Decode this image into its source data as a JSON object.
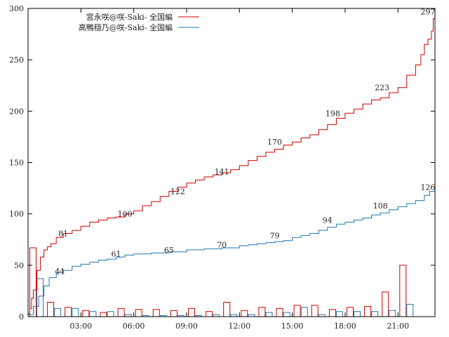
{
  "chart_data": {
    "type": "line",
    "title": "",
    "xlabel": "",
    "ylabel": "",
    "xlim": [
      0.0,
      23.1
    ],
    "ylim": [
      0,
      300
    ],
    "grid": false,
    "legend_position": "top-left",
    "x_ticks": [
      {
        "value": 3,
        "label": "03:00"
      },
      {
        "value": 6,
        "label": "06:00"
      },
      {
        "value": 9,
        "label": "09:00"
      },
      {
        "value": 12,
        "label": "12:00"
      },
      {
        "value": 15,
        "label": "15:00"
      },
      {
        "value": 18,
        "label": "18:00"
      },
      {
        "value": 21,
        "label": "21:00"
      }
    ],
    "y_ticks": [
      {
        "value": 0,
        "label": "0"
      },
      {
        "value": 50,
        "label": "50"
      },
      {
        "value": 100,
        "label": "100"
      },
      {
        "value": 150,
        "label": "150"
      },
      {
        "value": 200,
        "label": "200"
      },
      {
        "value": 250,
        "label": "250"
      },
      {
        "value": 300,
        "label": "300"
      }
    ],
    "series": [
      {
        "name": "宮永咲@咲-Saki- 全国編",
        "color": "#cc0000",
        "cumulative": {
          "x": [
            0.0,
            0.1,
            0.2,
            0.3,
            0.5,
            0.7,
            0.9,
            1.1,
            1.3,
            1.6,
            2.0,
            2.5,
            3.0,
            3.5,
            4.0,
            4.5,
            5.0,
            5.5,
            6.0,
            6.5,
            7.0,
            7.5,
            8.0,
            8.5,
            9.0,
            9.5,
            10.0,
            10.5,
            11.0,
            11.5,
            12.0,
            12.5,
            13.0,
            13.5,
            14.0,
            14.5,
            15.0,
            15.5,
            16.0,
            16.5,
            17.0,
            17.5,
            18.0,
            18.5,
            19.0,
            19.5,
            20.0,
            20.5,
            21.0,
            21.5,
            22.0,
            22.3,
            22.5,
            22.7,
            22.9,
            23.0,
            23.1
          ],
          "y": [
            3,
            8,
            18,
            26,
            45,
            58,
            65,
            68,
            71,
            77,
            81,
            84,
            88,
            92,
            94,
            96,
            97,
            100,
            103,
            108,
            112,
            117,
            122,
            126,
            130,
            133,
            136,
            138,
            140,
            143,
            147,
            152,
            156,
            160,
            163,
            167,
            170,
            174,
            177,
            182,
            187,
            193,
            198,
            202,
            207,
            211,
            213,
            218,
            223,
            235,
            245,
            255,
            265,
            270,
            278,
            290,
            297
          ]
        },
        "labels": [
          {
            "x": 2.0,
            "y": 81,
            "text": "81"
          },
          {
            "x": 5.5,
            "y": 100,
            "text": "100"
          },
          {
            "x": 8.5,
            "y": 122,
            "text": "122"
          },
          {
            "x": 11.0,
            "y": 141,
            "text": "141"
          },
          {
            "x": 14.0,
            "y": 170,
            "text": "170"
          },
          {
            "x": 17.3,
            "y": 198,
            "text": "198"
          },
          {
            "x": 20.1,
            "y": 223,
            "text": "223"
          },
          {
            "x": 22.7,
            "y": 297,
            "text": "297"
          }
        ],
        "hourly_counts": [
          {
            "x": 0.1,
            "value": 67
          },
          {
            "x": 1.1,
            "value": 14
          },
          {
            "x": 2.1,
            "value": 9
          },
          {
            "x": 3.1,
            "value": 6
          },
          {
            "x": 4.1,
            "value": 4
          },
          {
            "x": 5.1,
            "value": 8
          },
          {
            "x": 6.1,
            "value": 7
          },
          {
            "x": 7.1,
            "value": 7
          },
          {
            "x": 8.1,
            "value": 6
          },
          {
            "x": 9.1,
            "value": 8
          },
          {
            "x": 10.1,
            "value": 5
          },
          {
            "x": 11.1,
            "value": 14
          },
          {
            "x": 12.1,
            "value": 6
          },
          {
            "x": 13.1,
            "value": 9
          },
          {
            "x": 14.1,
            "value": 8
          },
          {
            "x": 15.1,
            "value": 11
          },
          {
            "x": 16.1,
            "value": 11
          },
          {
            "x": 17.1,
            "value": 7
          },
          {
            "x": 18.1,
            "value": 9
          },
          {
            "x": 19.1,
            "value": 10
          },
          {
            "x": 20.1,
            "value": 24
          },
          {
            "x": 21.1,
            "value": 50
          }
        ]
      },
      {
        "name": "高鴨穏乃@咲-Saki- 全国編",
        "color": "#1f77b4",
        "cumulative": {
          "x": [
            0.0,
            0.3,
            0.6,
            0.9,
            1.2,
            1.6,
            2.0,
            2.5,
            3.0,
            3.5,
            4.0,
            4.5,
            5.0,
            5.5,
            6.0,
            7.0,
            8.0,
            9.0,
            10.0,
            11.0,
            12.0,
            12.5,
            13.0,
            13.5,
            14.0,
            14.5,
            15.0,
            15.5,
            16.0,
            16.5,
            17.0,
            17.5,
            18.0,
            18.5,
            19.0,
            19.5,
            20.0,
            20.5,
            21.0,
            21.5,
            22.0,
            22.5,
            22.8,
            23.1
          ],
          "y": [
            2,
            10,
            20,
            30,
            38,
            43,
            45,
            49,
            51,
            53,
            55,
            56,
            58,
            60,
            61,
            62,
            63,
            65,
            66,
            67,
            69,
            70,
            71,
            72,
            73,
            74,
            77,
            79,
            81,
            84,
            87,
            90,
            92,
            94,
            96,
            99,
            101,
            104,
            107,
            110,
            113,
            118,
            122,
            126
          ]
        },
        "labels": [
          {
            "x": 1.8,
            "y": 44,
            "text": "44"
          },
          {
            "x": 5.0,
            "y": 61,
            "text": "61"
          },
          {
            "x": 8.0,
            "y": 65,
            "text": "65"
          },
          {
            "x": 11.0,
            "y": 70,
            "text": "70"
          },
          {
            "x": 14.0,
            "y": 79,
            "text": "79"
          },
          {
            "x": 17.0,
            "y": 94,
            "text": "94"
          },
          {
            "x": 20.0,
            "y": 108,
            "text": "108"
          },
          {
            "x": 22.7,
            "y": 126,
            "text": "126"
          }
        ],
        "hourly_counts": [
          {
            "x": 0.5,
            "value": 37
          },
          {
            "x": 1.5,
            "value": 8
          },
          {
            "x": 2.5,
            "value": 8
          },
          {
            "x": 3.5,
            "value": 5
          },
          {
            "x": 4.5,
            "value": 5
          },
          {
            "x": 5.5,
            "value": 2
          },
          {
            "x": 6.5,
            "value": 1
          },
          {
            "x": 7.5,
            "value": 1
          },
          {
            "x": 8.5,
            "value": 1
          },
          {
            "x": 9.5,
            "value": 1
          },
          {
            "x": 10.5,
            "value": 2
          },
          {
            "x": 11.5,
            "value": 2
          },
          {
            "x": 12.5,
            "value": 2
          },
          {
            "x": 13.5,
            "value": 4
          },
          {
            "x": 14.5,
            "value": 4
          },
          {
            "x": 15.5,
            "value": 9
          },
          {
            "x": 16.5,
            "value": 2
          },
          {
            "x": 17.5,
            "value": 5
          },
          {
            "x": 18.5,
            "value": 5
          },
          {
            "x": 19.5,
            "value": 5
          },
          {
            "x": 20.5,
            "value": 6
          },
          {
            "x": 21.5,
            "value": 12
          }
        ]
      }
    ]
  }
}
